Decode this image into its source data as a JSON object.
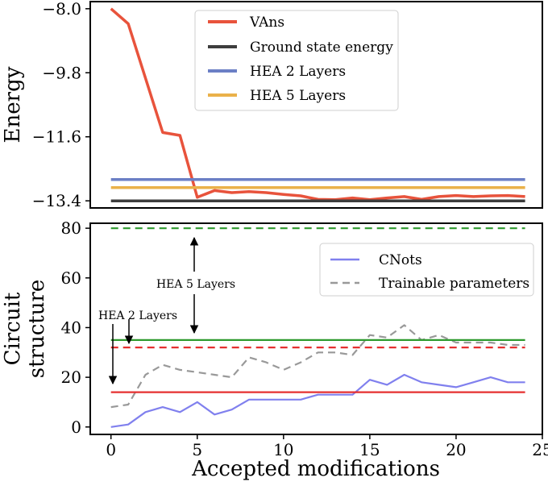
{
  "chart_data": [
    {
      "type": "line",
      "panel": "top",
      "ylabel": "Energy",
      "xlim": [
        -1.2,
        25
      ],
      "ylim": [
        -13.6,
        -7.8
      ],
      "yticks": [
        -8.0,
        -9.8,
        -11.6,
        -13.4
      ],
      "ytick_labels": [
        "−8.0",
        "−9.8",
        "−11.6",
        "−13.4"
      ],
      "legend_position": "top-center",
      "series": [
        {
          "name": "VAns",
          "color": "#e8533c",
          "style": "solid",
          "x": [
            0,
            1,
            2,
            3,
            4,
            5,
            6,
            7,
            8,
            9,
            10,
            11,
            12,
            13,
            14,
            15,
            16,
            17,
            18,
            19,
            20,
            21,
            22,
            23,
            24
          ],
          "y": [
            -8.0,
            -8.42,
            -9.95,
            -11.48,
            -11.56,
            -13.3,
            -13.11,
            -13.17,
            -13.14,
            -13.17,
            -13.22,
            -13.26,
            -13.36,
            -13.37,
            -13.32,
            -13.37,
            -13.32,
            -13.28,
            -13.36,
            -13.28,
            -13.25,
            -13.28,
            -13.26,
            -13.25,
            -13.28
          ]
        },
        {
          "name": "Ground state energy",
          "color": "#3d3d3d",
          "style": "solid",
          "x": [
            0,
            24
          ],
          "y": [
            -13.4,
            -13.4
          ]
        },
        {
          "name": "HEA 2 Layers",
          "color": "#6b7fc5",
          "style": "solid",
          "x": [
            0,
            24
          ],
          "y": [
            -12.8,
            -12.8
          ]
        },
        {
          "name": "HEA 5 Layers",
          "color": "#eab14a",
          "style": "solid",
          "x": [
            0,
            24
          ],
          "y": [
            -13.03,
            -13.03
          ]
        }
      ]
    },
    {
      "type": "line",
      "panel": "bottom",
      "xlabel": "Accepted modifications",
      "ylabel_lines": [
        "Circuit",
        "structure"
      ],
      "xlim": [
        -1.2,
        25
      ],
      "ylim": [
        -3,
        82
      ],
      "xticks": [
        0,
        5,
        10,
        15,
        20,
        25
      ],
      "xtick_labels": [
        "0",
        "5",
        "10",
        "15",
        "20",
        "25"
      ],
      "yticks": [
        0,
        20,
        40,
        60,
        80
      ],
      "ytick_labels": [
        "0",
        "20",
        "40",
        "60",
        "80"
      ],
      "legend_position": "top-right",
      "series": [
        {
          "name": "CNots",
          "color": "#8080ee",
          "style": "solid",
          "x": [
            0,
            1,
            2,
            3,
            4,
            5,
            6,
            7,
            8,
            9,
            10,
            11,
            12,
            13,
            14,
            15,
            16,
            17,
            18,
            19,
            20,
            21,
            22,
            23,
            24
          ],
          "y": [
            0,
            1,
            6,
            8,
            6,
            10,
            5,
            7,
            11,
            11,
            11,
            11,
            13,
            13,
            13,
            19,
            17,
            21,
            18,
            17,
            16,
            18,
            20,
            18,
            18
          ]
        },
        {
          "name": "Trainable parameters",
          "color": "#999999",
          "style": "dashed",
          "x": [
            0,
            1,
            2,
            3,
            4,
            5,
            6,
            7,
            8,
            9,
            10,
            11,
            12,
            13,
            14,
            15,
            16,
            17,
            18,
            19,
            20,
            21,
            22,
            23,
            24
          ],
          "y": [
            8,
            9,
            21,
            25,
            23,
            22,
            21,
            20,
            28,
            26,
            23,
            26,
            30,
            30,
            29,
            37,
            36,
            41,
            35,
            37,
            34,
            34,
            34,
            33,
            33
          ]
        },
        {
          "color": "#e53030",
          "style": "solid",
          "x": [
            0,
            24
          ],
          "y": [
            14,
            14
          ]
        },
        {
          "color": "#e53030",
          "style": "dashed",
          "x": [
            0,
            24
          ],
          "y": [
            32,
            32
          ]
        },
        {
          "color": "#2e9a2e",
          "style": "solid",
          "x": [
            0,
            24
          ],
          "y": [
            35,
            35
          ]
        },
        {
          "color": "#2e9a2e",
          "style": "dashed",
          "x": [
            0,
            24
          ],
          "y": [
            80,
            80
          ]
        }
      ],
      "annotations": [
        {
          "text": "HEA 5 Layers",
          "x": 5,
          "y_from": 35,
          "y_to": 80,
          "style": "double-arrow"
        },
        {
          "text": "HEA 2 Layers",
          "x": 0,
          "y_from": 35,
          "y_to": 14,
          "style": "arrow-down",
          "second_arrow_x": 0.9,
          "second_arrow_y_to": 32
        }
      ]
    }
  ]
}
